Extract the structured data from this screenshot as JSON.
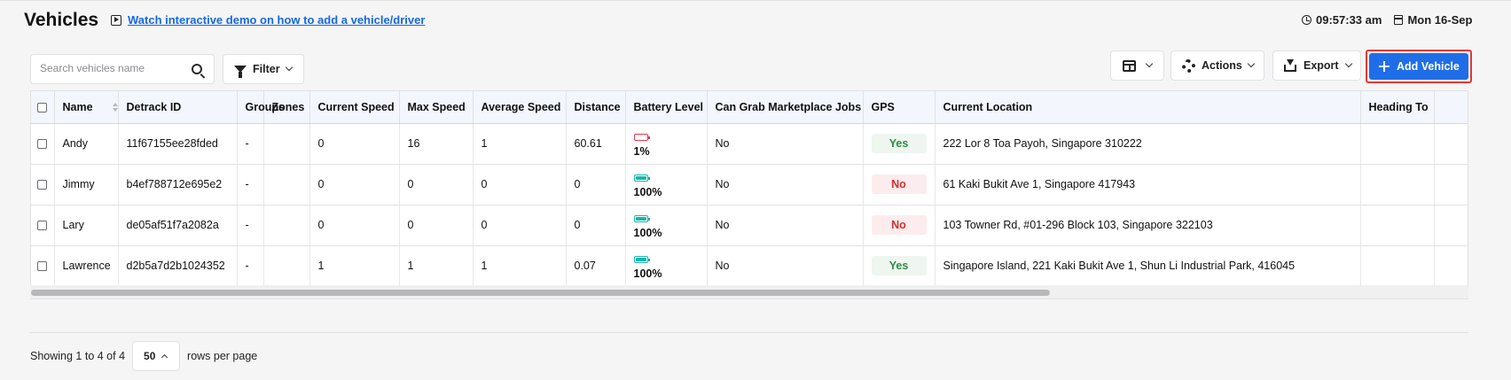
{
  "header": {
    "title": "Vehicles",
    "demo_link": "Watch interactive demo on how to add a vehicle/driver",
    "time": "09:57:33 am",
    "date": "Mon 16-Sep"
  },
  "toolbar": {
    "search_placeholder": "Search vehicles name",
    "filter_label": "Filter",
    "actions_label": "Actions",
    "export_label": "Export",
    "add_label": "Add Vehicle"
  },
  "table": {
    "columns": [
      "Name",
      "Detrack ID",
      "Groups",
      "Zones",
      "Current Speed",
      "Max Speed",
      "Average Speed",
      "Distance",
      "Battery Level",
      "Can Grab Marketplace Jobs",
      "GPS",
      "Current Location",
      "Heading To"
    ],
    "rows": [
      {
        "name": "Andy",
        "detrack_id": "11f67155ee28fded",
        "groups": "-",
        "zones": "",
        "current_speed": "0",
        "max_speed": "16",
        "avg_speed": "1",
        "distance": "60.61",
        "battery": "1%",
        "battery_level": 0.01,
        "marketplace": "No",
        "gps": "Yes",
        "location": "222 Lor 8 Toa Payoh, Singapore 310222",
        "heading": ""
      },
      {
        "name": "Jimmy",
        "detrack_id": "b4ef788712e695e2",
        "groups": "-",
        "zones": "",
        "current_speed": "0",
        "max_speed": "0",
        "avg_speed": "0",
        "distance": "0",
        "battery": "100%",
        "battery_level": 1.0,
        "marketplace": "No",
        "gps": "No",
        "location": "61 Kaki Bukit Ave 1, Singapore 417943",
        "heading": ""
      },
      {
        "name": "Lary",
        "detrack_id": "de05af51f7a2082a",
        "groups": "-",
        "zones": "",
        "current_speed": "0",
        "max_speed": "0",
        "avg_speed": "0",
        "distance": "0",
        "battery": "100%",
        "battery_level": 1.0,
        "marketplace": "No",
        "gps": "No",
        "location": "103 Towner Rd, #01-296 Block 103, Singapore 322103",
        "heading": ""
      },
      {
        "name": "Lawrence",
        "detrack_id": "d2b5a7d2b1024352",
        "groups": "-",
        "zones": "",
        "current_speed": "1",
        "max_speed": "1",
        "avg_speed": "1",
        "distance": "0.07",
        "battery": "100%",
        "battery_level": 1.0,
        "marketplace": "No",
        "gps": "Yes",
        "location": "Singapore Island, 221 Kaki Bukit Ave 1, Shun Li Industrial Park, 416045",
        "heading": ""
      }
    ]
  },
  "footer": {
    "showing": "Showing 1 to 4 of 4",
    "rows_per_page_value": "50",
    "rows_per_page_label": "rows per page"
  },
  "colors": {
    "primary": "#1f6ee8",
    "highlight_border": "#e53935",
    "gps_yes": "#2e8b46",
    "gps_no": "#d32f2f",
    "battery_full": "#1ab5a9",
    "battery_low": "#e53950"
  }
}
